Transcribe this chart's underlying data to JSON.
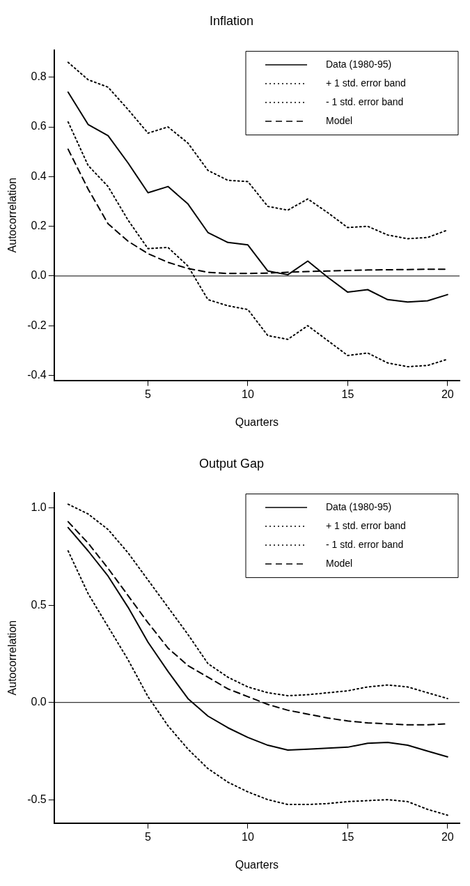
{
  "chart_data": [
    {
      "type": "line",
      "title": "Inflation",
      "xlabel": "Quarters",
      "ylabel": "Autocorrelation",
      "x": [
        1,
        2,
        3,
        4,
        5,
        6,
        7,
        8,
        9,
        10,
        11,
        12,
        13,
        14,
        15,
        16,
        17,
        18,
        19,
        20
      ],
      "xlim": [
        0.3,
        20.6
      ],
      "xticks": [
        5,
        10,
        15,
        20
      ],
      "ylim": [
        -0.42,
        0.91
      ],
      "yticks": [
        -0.4,
        -0.2,
        {
          "value": 0,
          "label": "0.0"
        },
        0.2,
        0.4,
        0.6,
        0.8
      ],
      "grid": false,
      "legend": "top right",
      "marker": "none",
      "ref_lines": [
        {
          "axis": "y",
          "value": 0,
          "color": "#000000"
        }
      ],
      "series": [
        {
          "name": "Data (1980-95)",
          "color": "#000000",
          "line_style": "solid",
          "values": [
            0.74,
            0.61,
            0.565,
            0.455,
            0.335,
            0.36,
            0.29,
            0.175,
            0.135,
            0.125,
            0.02,
            0.005,
            0.06,
            -0.005,
            -0.065,
            -0.055,
            -0.095,
            -0.105,
            -0.1,
            -0.075
          ]
        },
        {
          "name": "+ 1 std. error band",
          "color": "#000000",
          "line_style": "dotted",
          "values": [
            0.86,
            0.79,
            0.76,
            0.67,
            0.575,
            0.6,
            0.535,
            0.425,
            0.385,
            0.38,
            0.28,
            0.265,
            0.31,
            0.255,
            0.195,
            0.2,
            0.165,
            0.15,
            0.155,
            0.185
          ]
        },
        {
          "name": "- 1 std. error band",
          "color": "#000000",
          "line_style": "dotted",
          "values": [
            0.62,
            0.445,
            0.36,
            0.225,
            0.11,
            0.115,
            0.04,
            -0.095,
            -0.12,
            -0.135,
            -0.24,
            -0.255,
            -0.2,
            -0.26,
            -0.32,
            -0.31,
            -0.35,
            -0.365,
            -0.36,
            -0.335
          ]
        },
        {
          "name": "Model",
          "color": "#000000",
          "line_style": "dashed",
          "values": [
            0.51,
            0.35,
            0.21,
            0.14,
            0.09,
            0.055,
            0.03,
            0.015,
            0.01,
            0.01,
            0.012,
            0.015,
            0.018,
            0.02,
            0.022,
            0.024,
            0.025,
            0.026,
            0.027,
            0.027
          ]
        }
      ]
    },
    {
      "type": "line",
      "title": "Output Gap",
      "xlabel": "Quarters",
      "ylabel": "Autocorrelation",
      "x": [
        1,
        2,
        3,
        4,
        5,
        6,
        7,
        8,
        9,
        10,
        11,
        12,
        13,
        14,
        15,
        16,
        17,
        18,
        19,
        20
      ],
      "xlim": [
        0.3,
        20.6
      ],
      "xticks": [
        5,
        10,
        15,
        20
      ],
      "ylim": [
        -0.62,
        1.08
      ],
      "yticks": [
        {
          "value": -0.5,
          "label": "-0.5"
        },
        {
          "value": 0,
          "label": "0.0"
        },
        0.5,
        {
          "value": 1,
          "label": "1.0"
        }
      ],
      "grid": false,
      "legend": "top right",
      "marker": "none",
      "ref_lines": [
        {
          "axis": "y",
          "value": 0,
          "color": "#000000"
        }
      ],
      "series": [
        {
          "name": "Data (1980-95)",
          "color": "#000000",
          "line_style": "solid",
          "values": [
            0.9,
            0.78,
            0.65,
            0.49,
            0.31,
            0.16,
            0.02,
            -0.07,
            -0.13,
            -0.18,
            -0.22,
            -0.245,
            -0.24,
            -0.235,
            -0.23,
            -0.21,
            -0.205,
            -0.22,
            -0.25,
            -0.28
          ]
        },
        {
          "name": "+ 1 std. error band",
          "color": "#000000",
          "line_style": "dotted",
          "values": [
            1.02,
            0.97,
            0.89,
            0.77,
            0.63,
            0.49,
            0.35,
            0.2,
            0.13,
            0.08,
            0.05,
            0.035,
            0.04,
            0.05,
            0.06,
            0.08,
            0.09,
            0.08,
            0.05,
            0.02
          ]
        },
        {
          "name": "- 1 std. error band",
          "color": "#000000",
          "line_style": "dotted",
          "values": [
            0.78,
            0.56,
            0.39,
            0.22,
            0.03,
            -0.12,
            -0.24,
            -0.34,
            -0.41,
            -0.46,
            -0.5,
            -0.525,
            -0.525,
            -0.52,
            -0.51,
            -0.505,
            -0.5,
            -0.51,
            -0.55,
            -0.58
          ]
        },
        {
          "name": "Model",
          "color": "#000000",
          "line_style": "dashed",
          "values": [
            0.93,
            0.82,
            0.69,
            0.55,
            0.41,
            0.28,
            0.19,
            0.13,
            0.07,
            0.03,
            -0.01,
            -0.04,
            -0.06,
            -0.08,
            -0.095,
            -0.105,
            -0.11,
            -0.115,
            -0.115,
            -0.11
          ]
        }
      ]
    }
  ]
}
